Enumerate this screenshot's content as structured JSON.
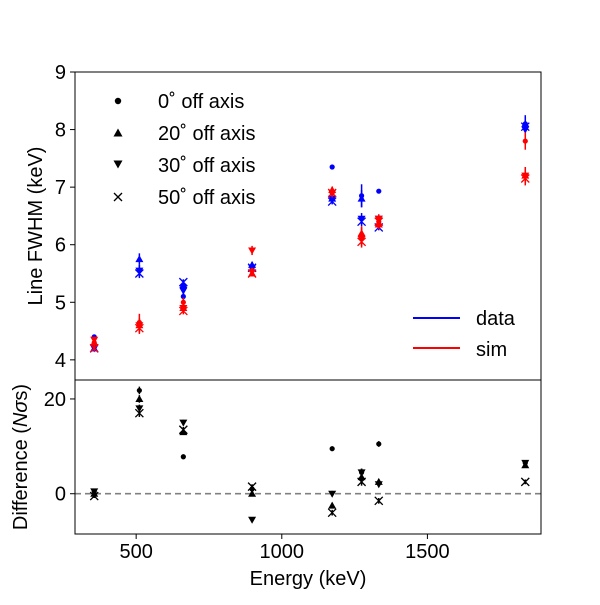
{
  "chart_data": {
    "type": "scatter",
    "x_label": "Energy (keV)",
    "x_ticks": [
      500,
      1000,
      1500
    ],
    "x_range": [
      290,
      1890
    ],
    "panels": [
      {
        "id": "top",
        "ylabel": "Line FWHM (keV)",
        "ylim": [
          3.65,
          9.0
        ],
        "yticks": [
          4,
          5,
          6,
          7,
          8,
          9
        ],
        "marker_legend": [
          {
            "marker": "dot",
            "label": "0$^\\circ$ off axis",
            "text": "0˚  off axis"
          },
          {
            "marker": "tri_up",
            "label": "20˚ off axis",
            "text": "20˚  off axis"
          },
          {
            "marker": "tri_down",
            "label": "30˚ off axis",
            "text": "30˚  off axis"
          },
          {
            "marker": "x",
            "label": "50˚ off axis",
            "text": "50˚  off axis"
          }
        ],
        "color_legend": [
          {
            "label": "data",
            "color": "#0000ff"
          },
          {
            "label": "sim",
            "color": "#ff0000"
          }
        ],
        "series": [
          {
            "color": "#0000ff",
            "marker": "dot",
            "x": [
              356,
              511,
              662,
              898,
              1173,
              1274,
              1333,
              1836
            ],
            "y": [
              4.4,
              5.55,
              5.1,
              5.6,
              7.35,
              6.85,
              6.93,
              8.1
            ],
            "yerr": [
              0.03,
              0.1,
              0.1,
              0.05,
              0.03,
              0.2,
              0.03,
              0.15
            ]
          },
          {
            "color": "#0000ff",
            "marker": "tri_up",
            "x": [
              356,
              511,
              662,
              898,
              1173,
              1274,
              1333,
              1836
            ],
            "y": [
              4.2,
              5.75,
              5.3,
              5.65,
              6.8,
              6.8,
              6.35,
              8.1
            ],
            "yerr": [
              0.05,
              0.1,
              0.08,
              0.05,
              0.06,
              0.15,
              0.06,
              0.12
            ]
          },
          {
            "color": "#0000ff",
            "marker": "tri_down",
            "x": [
              356,
              511,
              662,
              898,
              1173,
              1274,
              1333,
              1836
            ],
            "y": [
              4.2,
              5.55,
              5.2,
              5.6,
              6.8,
              6.45,
              6.45,
              8.0
            ],
            "yerr": [
              0.05,
              0.1,
              0.08,
              0.05,
              0.06,
              0.1,
              0.06,
              0.12
            ]
          },
          {
            "color": "#0000ff",
            "marker": "x",
            "x": [
              356,
              511,
              662,
              898,
              1173,
              1274,
              1333,
              1836
            ],
            "y": [
              4.2,
              5.5,
              5.35,
              5.6,
              6.75,
              6.4,
              6.3,
              8.05
            ],
            "yerr": [
              0.05,
              0.08,
              0.05,
              0.05,
              0.05,
              0.08,
              0.05,
              0.1
            ]
          },
          {
            "color": "#ff0000",
            "marker": "dot",
            "x": [
              356,
              511,
              662,
              898,
              1173,
              1274,
              1333,
              1836
            ],
            "y": [
              4.3,
              4.65,
              5.0,
              5.55,
              6.9,
              6.15,
              6.4,
              7.8
            ],
            "yerr": [
              0.05,
              0.15,
              0.08,
              0.05,
              0.08,
              0.15,
              0.1,
              0.15
            ]
          },
          {
            "color": "#ff0000",
            "marker": "tri_up",
            "x": [
              356,
              511,
              662,
              898,
              1173,
              1274,
              1333,
              1836
            ],
            "y": [
              4.3,
              4.6,
              4.9,
              5.5,
              6.95,
              6.2,
              6.35,
              7.2
            ],
            "yerr": [
              0.05,
              0.12,
              0.06,
              0.05,
              0.06,
              0.12,
              0.08,
              0.15
            ]
          },
          {
            "color": "#ff0000",
            "marker": "tri_down",
            "x": [
              356,
              511,
              662,
              898,
              1173,
              1274,
              1333,
              1836
            ],
            "y": [
              4.35,
              4.6,
              4.9,
              5.9,
              6.9,
              6.1,
              6.45,
              7.2
            ],
            "yerr": [
              0.05,
              0.12,
              0.06,
              0.08,
              0.06,
              0.12,
              0.08,
              0.15
            ]
          },
          {
            "color": "#ff0000",
            "marker": "x",
            "x": [
              356,
              511,
              662,
              898,
              1173,
              1274,
              1333,
              1836
            ],
            "y": [
              4.2,
              4.55,
              4.85,
              5.5,
              6.9,
              6.05,
              6.4,
              7.15
            ],
            "yerr": [
              0.05,
              0.1,
              0.06,
              0.05,
              0.06,
              0.1,
              0.08,
              0.12
            ]
          }
        ]
      },
      {
        "id": "bottom",
        "ylabel_prefix": "Difference (",
        "ylabel_italic": "N",
        "ylabel_greek": "σ",
        "ylabel_suffix": "s)",
        "ylim": [
          -8.5,
          24.0
        ],
        "yticks": [
          0,
          20
        ],
        "reference_line": {
          "y": 0,
          "style": "dashed",
          "color": "#808080"
        },
        "series": [
          {
            "color": "#000000",
            "marker": "dot",
            "x": [
              356,
              511,
              662,
              898,
              1173,
              1274,
              1333,
              1836
            ],
            "y": [
              0.5,
              21.8,
              7.8,
              1.0,
              9.5,
              4.5,
              10.5,
              6.5
            ],
            "yerr": [
              0.4,
              0.8,
              0.5,
              0.5,
              0.5,
              0.8,
              0.6,
              0.6
            ]
          },
          {
            "color": "#000000",
            "marker": "tri_up",
            "x": [
              356,
              511,
              662,
              898,
              1173,
              1274,
              1333,
              1836
            ],
            "y": [
              0.0,
              20.0,
              13.0,
              0.0,
              -2.5,
              3.5,
              2.5,
              6.0
            ],
            "yerr": [
              0.4,
              0.8,
              0.6,
              0.5,
              0.6,
              0.8,
              0.6,
              0.5
            ]
          },
          {
            "color": "#000000",
            "marker": "tri_down",
            "x": [
              356,
              511,
              662,
              898,
              1173,
              1274,
              1333,
              1836
            ],
            "y": [
              0.5,
              18.0,
              15.0,
              -5.5,
              0.0,
              4.5,
              2.0,
              6.5
            ],
            "yerr": [
              0.4,
              0.8,
              0.6,
              0.5,
              0.6,
              0.8,
              0.6,
              0.5
            ]
          },
          {
            "color": "#000000",
            "marker": "x",
            "x": [
              356,
              511,
              662,
              898,
              1173,
              1274,
              1333,
              1836
            ],
            "y": [
              -0.5,
              17.0,
              13.5,
              1.5,
              -4.0,
              2.5,
              -1.5,
              2.5
            ],
            "yerr": [
              0.4,
              0.8,
              0.6,
              0.5,
              0.6,
              0.8,
              0.6,
              0.5
            ]
          }
        ]
      }
    ]
  }
}
